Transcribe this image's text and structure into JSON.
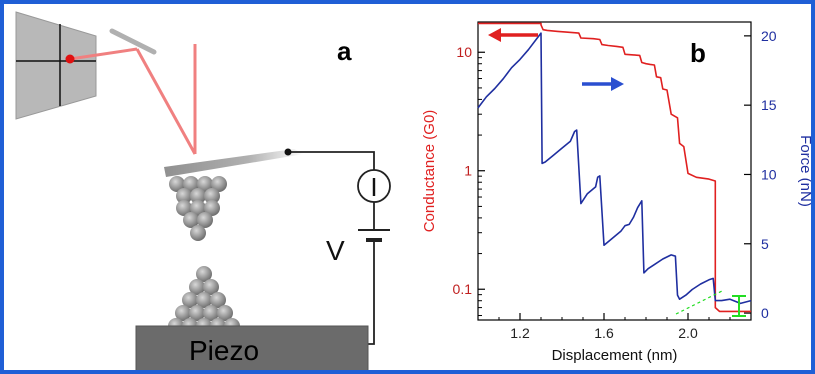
{
  "panel_a": {
    "label": "a",
    "current_meter_symbol": "I",
    "voltage_label": "V",
    "piezo_label": "Piezo",
    "colors": {
      "laser": "#f08080",
      "tip": "#909090",
      "piezo": "#6b6b6b",
      "detector": "#b5b5b5"
    }
  },
  "panel_b": {
    "label": "b",
    "colors": {
      "conductance": "#e02020",
      "force": "#1f2fa0",
      "noise_bar": "#22dd22"
    }
  },
  "chart_data": {
    "type": "line",
    "title": "",
    "xlabel": "Displacement (nm)",
    "ylabel": "Conductance (G0)",
    "ylabel_right": "Force (nN)",
    "xlim": [
      1.0,
      2.3
    ],
    "ylim": [
      0.055,
      18
    ],
    "yscale": "log",
    "ylim_right": [
      -0.5,
      21
    ],
    "x_ticks": [
      "1.2",
      "1.6",
      "2.0"
    ],
    "y_ticks": [
      "0.1",
      "1",
      "10"
    ],
    "y_ticks_right": [
      "0",
      "5",
      "10",
      "15",
      "20"
    ],
    "grid": false,
    "series": [
      {
        "axis": "left",
        "x": [
          1.0,
          1.3,
          1.3,
          1.31,
          1.33,
          1.38,
          1.42,
          1.48,
          1.49,
          1.55,
          1.58,
          1.59,
          1.62,
          1.66,
          1.69,
          1.7,
          1.74,
          1.77,
          1.78,
          1.8,
          1.82,
          1.84,
          1.85,
          1.87,
          1.88,
          1.9,
          1.92,
          1.95,
          1.96,
          1.98,
          2.0,
          2.04,
          2.1,
          2.13,
          2.13,
          2.15,
          2.3
        ],
        "y": [
          17.5,
          17.5,
          17,
          15.5,
          15.3,
          15.0,
          14.8,
          14.5,
          13.2,
          13.0,
          12.8,
          11.6,
          11.4,
          11.2,
          11.0,
          9.6,
          9.5,
          9.4,
          8.2,
          8.0,
          7.9,
          7.8,
          6.2,
          6.1,
          4.9,
          4.8,
          3.0,
          2.8,
          1.7,
          1.6,
          0.95,
          0.88,
          0.85,
          0.82,
          0.07,
          0.065,
          0.065
        ]
      },
      {
        "axis": "right",
        "x": [
          1.0,
          1.04,
          1.08,
          1.12,
          1.16,
          1.2,
          1.24,
          1.28,
          1.3,
          1.305,
          1.32,
          1.36,
          1.4,
          1.44,
          1.46,
          1.47,
          1.49,
          1.52,
          1.56,
          1.57,
          1.58,
          1.6,
          1.64,
          1.68,
          1.7,
          1.72,
          1.74,
          1.76,
          1.78,
          1.79,
          1.81,
          1.84,
          1.88,
          1.92,
          1.94,
          1.95,
          1.96,
          1.99,
          2.02,
          2.06,
          2.1,
          2.12,
          2.13,
          2.16,
          2.2,
          2.25,
          2.3
        ],
        "y": [
          14.8,
          15.6,
          16.2,
          16.9,
          17.7,
          18.3,
          19.0,
          19.8,
          20.2,
          10.8,
          10.9,
          11.4,
          11.9,
          12.4,
          13.1,
          13.2,
          7.9,
          8.6,
          9.1,
          9.8,
          9.9,
          4.9,
          5.4,
          5.9,
          6.3,
          6.4,
          6.9,
          7.6,
          8.1,
          2.9,
          3.2,
          3.5,
          3.9,
          4.2,
          4.1,
          1.3,
          1.0,
          1.3,
          1.7,
          2.1,
          2.4,
          2.5,
          0.9,
          0.9,
          1.0,
          0.7,
          0.9
        ]
      }
    ]
  }
}
